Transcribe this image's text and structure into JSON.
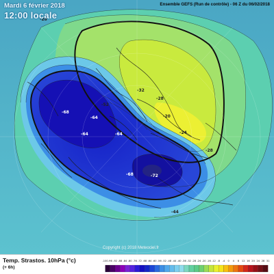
{
  "header": {
    "date": "Mardi 6 février 2018",
    "time": "12:00 locale",
    "model": "Ensemble GEFS (Run de contrôle) - 06 Z du 06/02/2018"
  },
  "copyright": "Copyright (c) 2018 Meteociel.fr",
  "footer": {
    "parameter": "Temp. Strastos. 10hPa (°c)",
    "step": "(+ 6h)"
  },
  "contour_labels": [
    "-68",
    "-64",
    "-64",
    "-64",
    "-68",
    "-72",
    "-52",
    "-28",
    "-32",
    "-28",
    "-28",
    "-24",
    "-20",
    "-44"
  ],
  "legend": {
    "labels": [
      "-100",
      "-96",
      "-92",
      "-88",
      "-84",
      "-80",
      "-76",
      "-72",
      "-68",
      "-64",
      "-60",
      "-56",
      "-52",
      "-48",
      "-44",
      "-40",
      "-36",
      "-32",
      "-28",
      "-24",
      "-20",
      "-16",
      "-12",
      "-8",
      "-4",
      "0",
      "4",
      "8",
      "12",
      "16",
      "20",
      "24",
      "28",
      "31"
    ],
    "colors": [
      "#2a0038",
      "#4a0066",
      "#6a0090",
      "#8c00b8",
      "#7a22d6",
      "#5522e0",
      "#2c1ad8",
      "#1510c2",
      "#1426c8",
      "#1c46d8",
      "#2a6ae0",
      "#3c8ee6",
      "#50a8ec",
      "#64bced",
      "#7ccff0",
      "#8fdcec",
      "#7cd8c0",
      "#62d0a0",
      "#5ccb88",
      "#6ed070",
      "#9bdc56",
      "#c6e63c",
      "#e8f02e",
      "#f6e41a",
      "#f8c010",
      "#f49a0c",
      "#ee7410",
      "#e44a12",
      "#d4281a",
      "#b8141c",
      "#961018",
      "#741018",
      "#560c14"
    ]
  }
}
